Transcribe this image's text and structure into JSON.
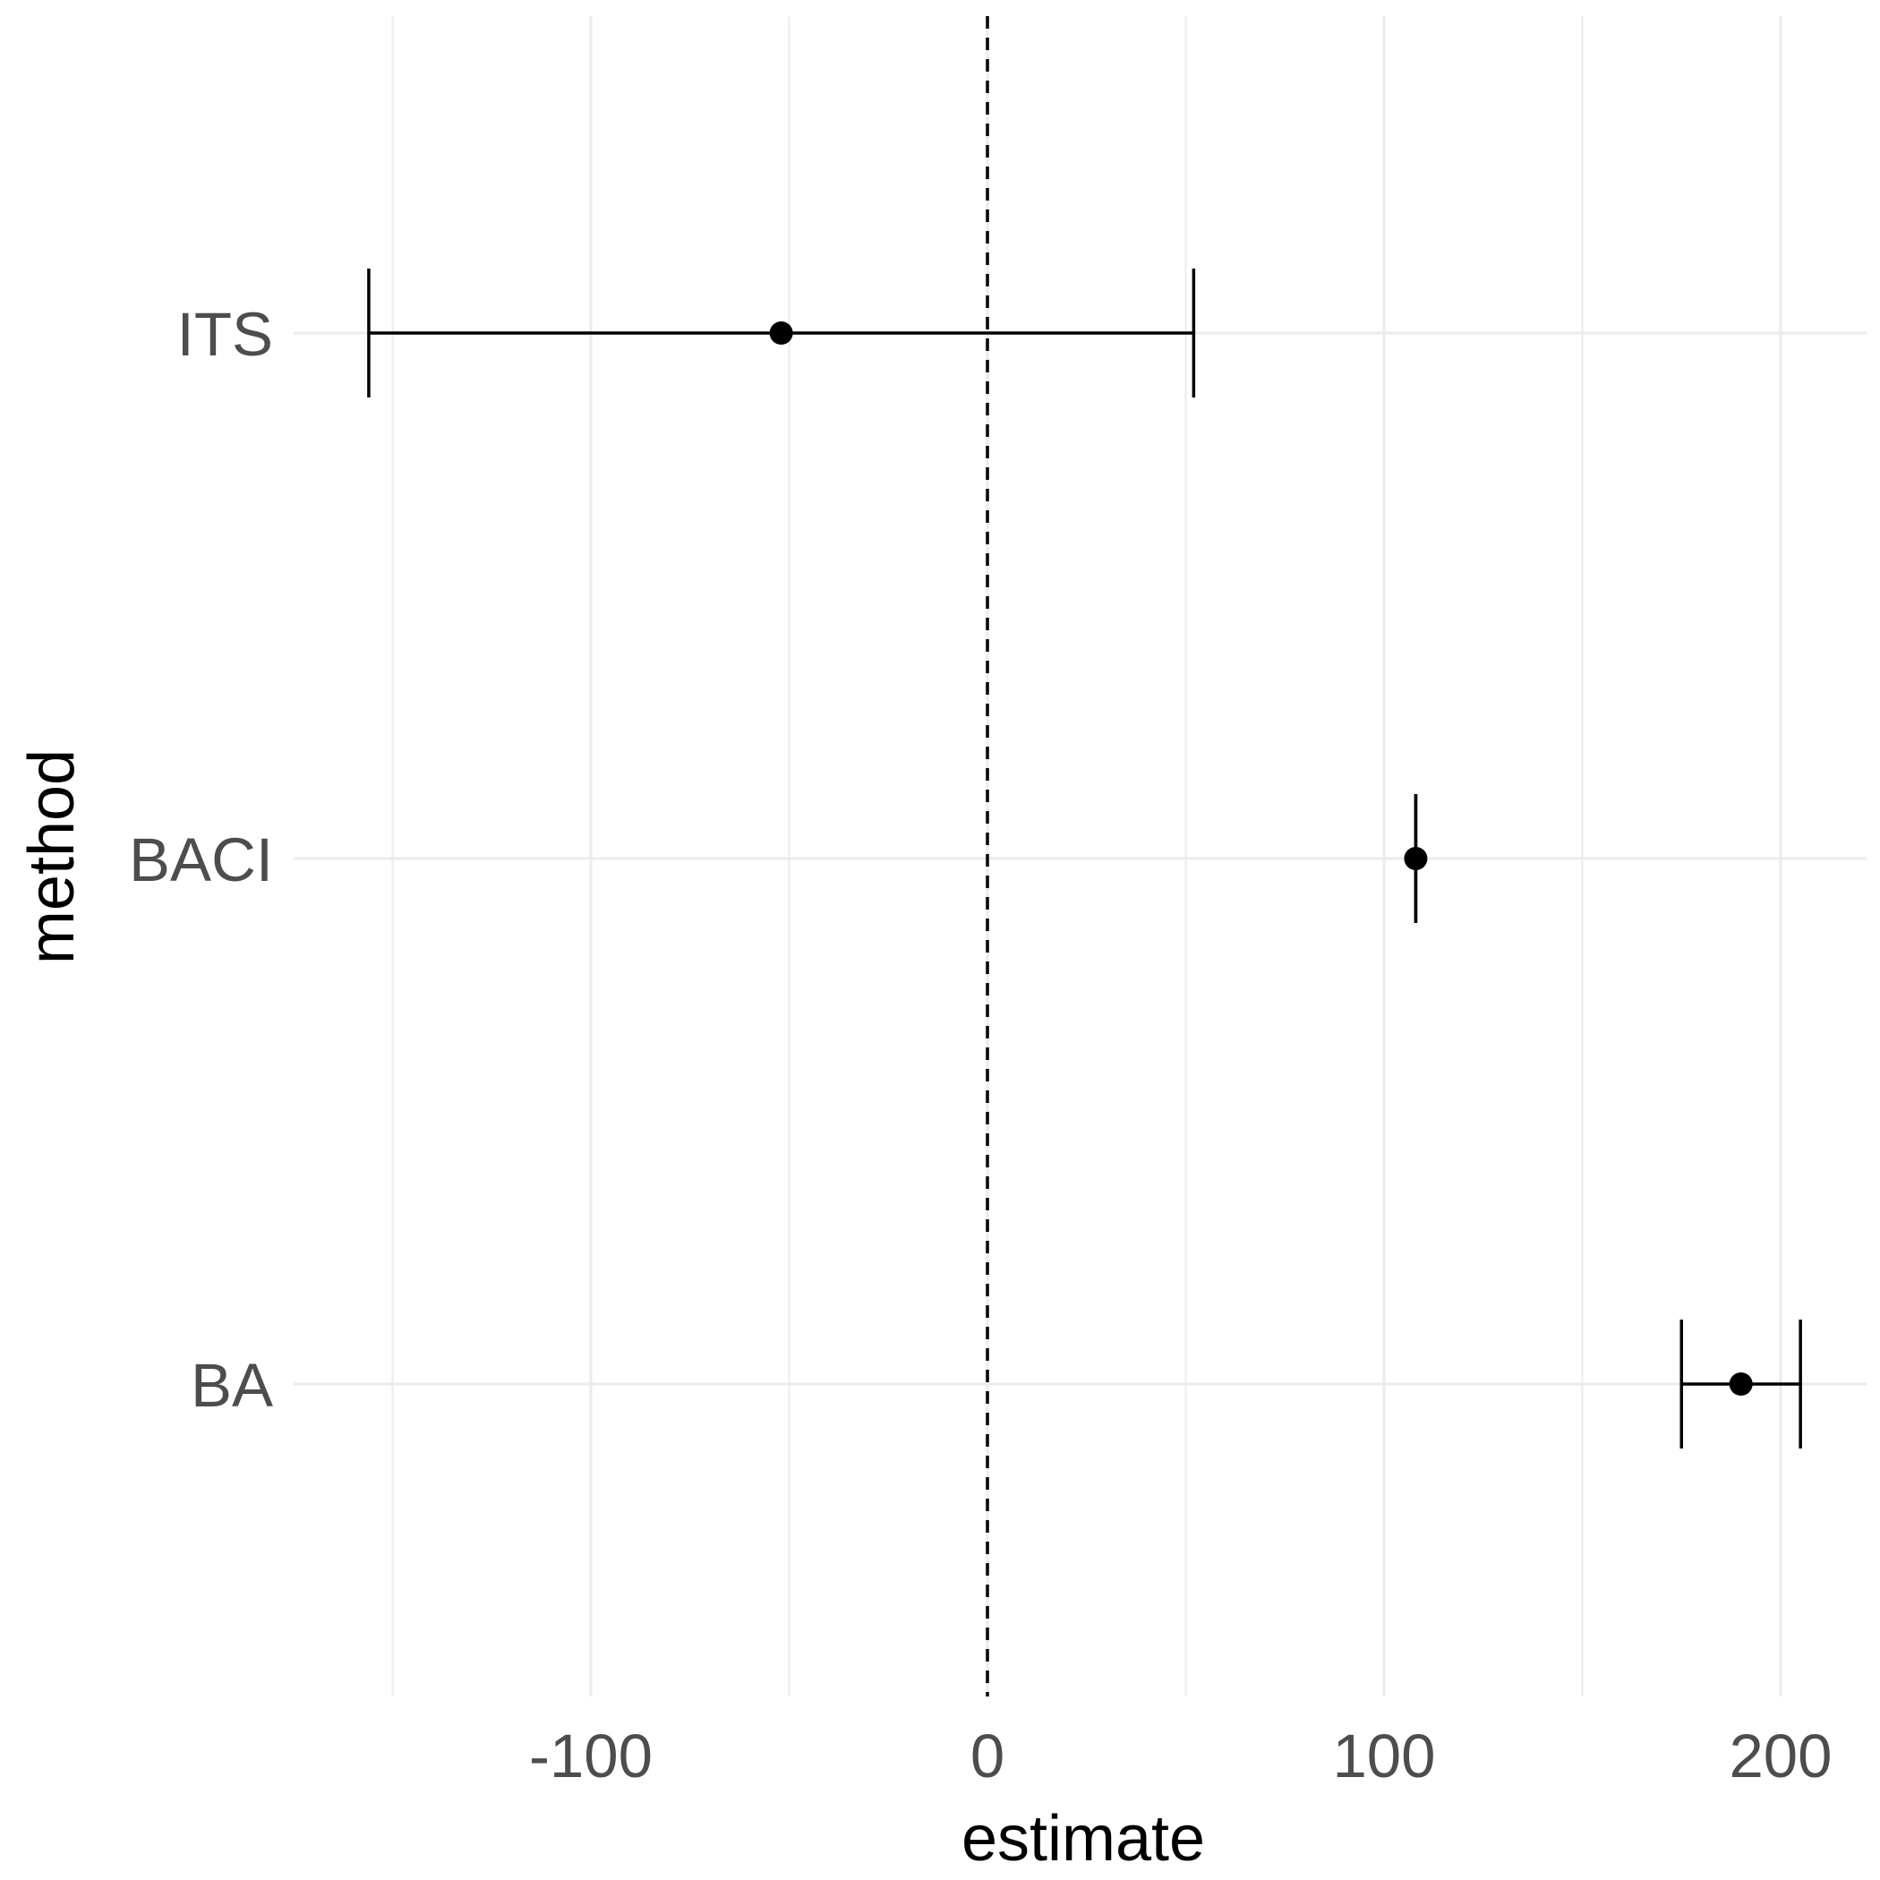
{
  "chart_data": {
    "type": "scatter",
    "subtype": "forest-plot",
    "xlabel": "estimate",
    "ylabel": "method",
    "xlim": [
      -155,
      222
    ],
    "x_major_ticks": [
      -100,
      0,
      100,
      200
    ],
    "x_minor_gridlines": [
      -150,
      -50,
      50,
      150
    ],
    "x_tick_labels": [
      "-100",
      "0",
      "100",
      "200"
    ],
    "categories": [
      "ITS",
      "BACI",
      "BA"
    ],
    "estimates": [
      {
        "method": "ITS",
        "estimate": -52,
        "lower": -156,
        "upper": 52
      },
      {
        "method": "BACI",
        "estimate": 108,
        "lower": 108,
        "upper": 108
      },
      {
        "method": "BA",
        "estimate": 190,
        "lower": 175,
        "upper": 205
      }
    ],
    "reference_line": {
      "x": 0,
      "style": "dashed"
    },
    "grid": true,
    "legend": "none",
    "colors": {
      "grid": "#ebebeb",
      "marks": "#000000",
      "tick_text": "#4d4d4d"
    }
  }
}
